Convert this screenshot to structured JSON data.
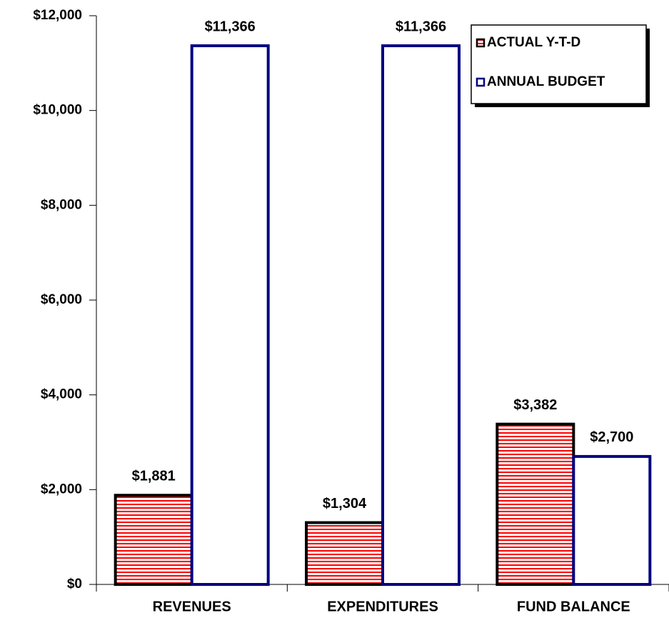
{
  "chart_data": {
    "type": "bar",
    "categories": [
      "REVENUES",
      "EXPENDITURES",
      "FUND BALANCE"
    ],
    "series": [
      {
        "name": "ACTUAL Y-T-D",
        "color": "#ff0000",
        "edgecolor": "#000000",
        "hatch": true,
        "values": [
          1881,
          1304,
          3382
        ],
        "value_labels": [
          "$1,881",
          "$1,304",
          "$3,382"
        ]
      },
      {
        "name": "ANNUAL BUDGET",
        "color": "#ffffff",
        "edgecolor": "#000080",
        "hatch": false,
        "values": [
          11366,
          11366,
          2700
        ],
        "value_labels": [
          "$11,366",
          "$11,366",
          "$2,700"
        ]
      }
    ],
    "ylim": [
      0,
      12000
    ],
    "yticks": [
      {
        "value": 0,
        "label": "$0"
      },
      {
        "value": 2000,
        "label": "$2,000"
      },
      {
        "value": 4000,
        "label": "$4,000"
      },
      {
        "value": 6000,
        "label": "$6,000"
      },
      {
        "value": 8000,
        "label": "$8,000"
      },
      {
        "value": 10000,
        "label": "$10,000"
      },
      {
        "value": 12000,
        "label": "$12,000"
      }
    ],
    "legend": "top-right"
  }
}
